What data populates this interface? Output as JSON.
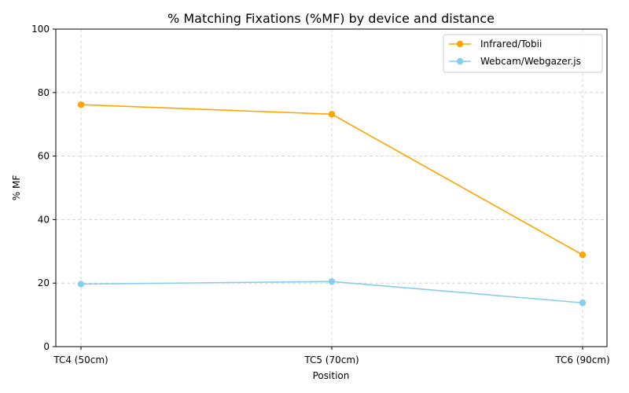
{
  "chart_data": {
    "type": "line",
    "title": "% Matching Fixations (%MF) by device and distance",
    "xlabel": "Position",
    "ylabel": "% MF",
    "categories": [
      "TC4 (50cm)",
      "TC5 (70cm)",
      "TC6 (90cm)"
    ],
    "ylim": [
      0,
      100
    ],
    "yticks": [
      0,
      20,
      40,
      60,
      80,
      100
    ],
    "grid": true,
    "legend_position": "top-right",
    "series": [
      {
        "name": "Infrared/Tobii",
        "color": "#FFA500",
        "values": [
          76.2,
          73.2,
          28.9
        ]
      },
      {
        "name": "Webcam/Webgazer.js",
        "color": "#87CEEB",
        "values": [
          19.7,
          20.5,
          13.8
        ]
      }
    ]
  }
}
